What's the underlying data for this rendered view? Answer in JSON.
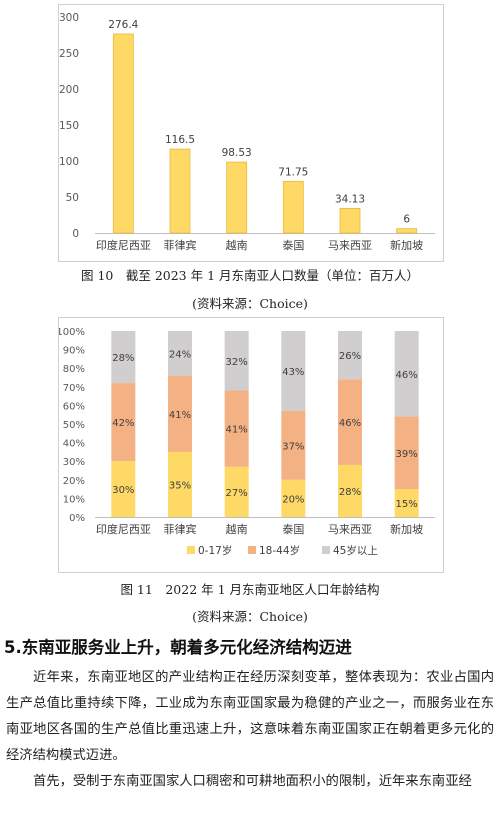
{
  "figure10": {
    "caption": "图 10　截至 2023 年 1 月东南亚人口数量（单位：百万人）",
    "source": "(资料来源：Choice)",
    "chart_data": {
      "type": "bar",
      "categories": [
        "印度尼西亚",
        "菲律宾",
        "越南",
        "泰国",
        "马来西亚",
        "新加坡"
      ],
      "values": [
        276.4,
        116.5,
        98.53,
        71.75,
        34.13,
        6
      ],
      "value_labels": [
        "276.4",
        "116.5",
        "98.53",
        "71.75",
        "34.13",
        "6"
      ],
      "ylim": [
        0,
        300
      ],
      "yticks": [
        0,
        50,
        100,
        150,
        200,
        250,
        300
      ],
      "grid": false,
      "colors": {
        "bar": "#FFD966",
        "bar_edge": "#E8B93A"
      }
    }
  },
  "figure11": {
    "caption": "图 11　2022 年 1 月东南亚地区人口年龄结构",
    "source": "(资料来源：Choice)",
    "chart_data": {
      "type": "bar",
      "stacked": true,
      "categories": [
        "印度尼西亚",
        "菲律宾",
        "越南",
        "泰国",
        "马来西亚",
        "新加坡"
      ],
      "series": [
        {
          "name": "0-17岁",
          "values": [
            30,
            35,
            27,
            20,
            28,
            15
          ],
          "color": "#FFD966"
        },
        {
          "name": "18-44岁",
          "values": [
            42,
            41,
            41,
            37,
            46,
            39
          ],
          "color": "#F4B183"
        },
        {
          "name": "45岁以上",
          "values": [
            28,
            24,
            32,
            43,
            26,
            46
          ],
          "color": "#D0CECE"
        }
      ],
      "ylim": [
        0,
        100
      ],
      "yticks": [
        "0%",
        "10%",
        "20%",
        "30%",
        "40%",
        "50%",
        "60%",
        "70%",
        "80%",
        "90%",
        "100%"
      ],
      "legend": "bottom",
      "grid": false
    }
  },
  "section": {
    "title": "5.东南亚服务业上升，朝着多元化经济结构迈进",
    "paragraphs": [
      "近年来，东南亚地区的产业结构正在经历深刻变革，整体表现为：农业占国内生产总值比重持续下降，工业成为东南亚国家最为稳健的产业之一，而服务业在东南亚地区各国的生产总值比重迅速上升，这意味着东南亚国家正在朝着更多元化的经济结构模式迈进。",
      "首先，受制于东南亚国家人口稠密和可耕地面积小的限制，近年来东南亚经"
    ]
  }
}
